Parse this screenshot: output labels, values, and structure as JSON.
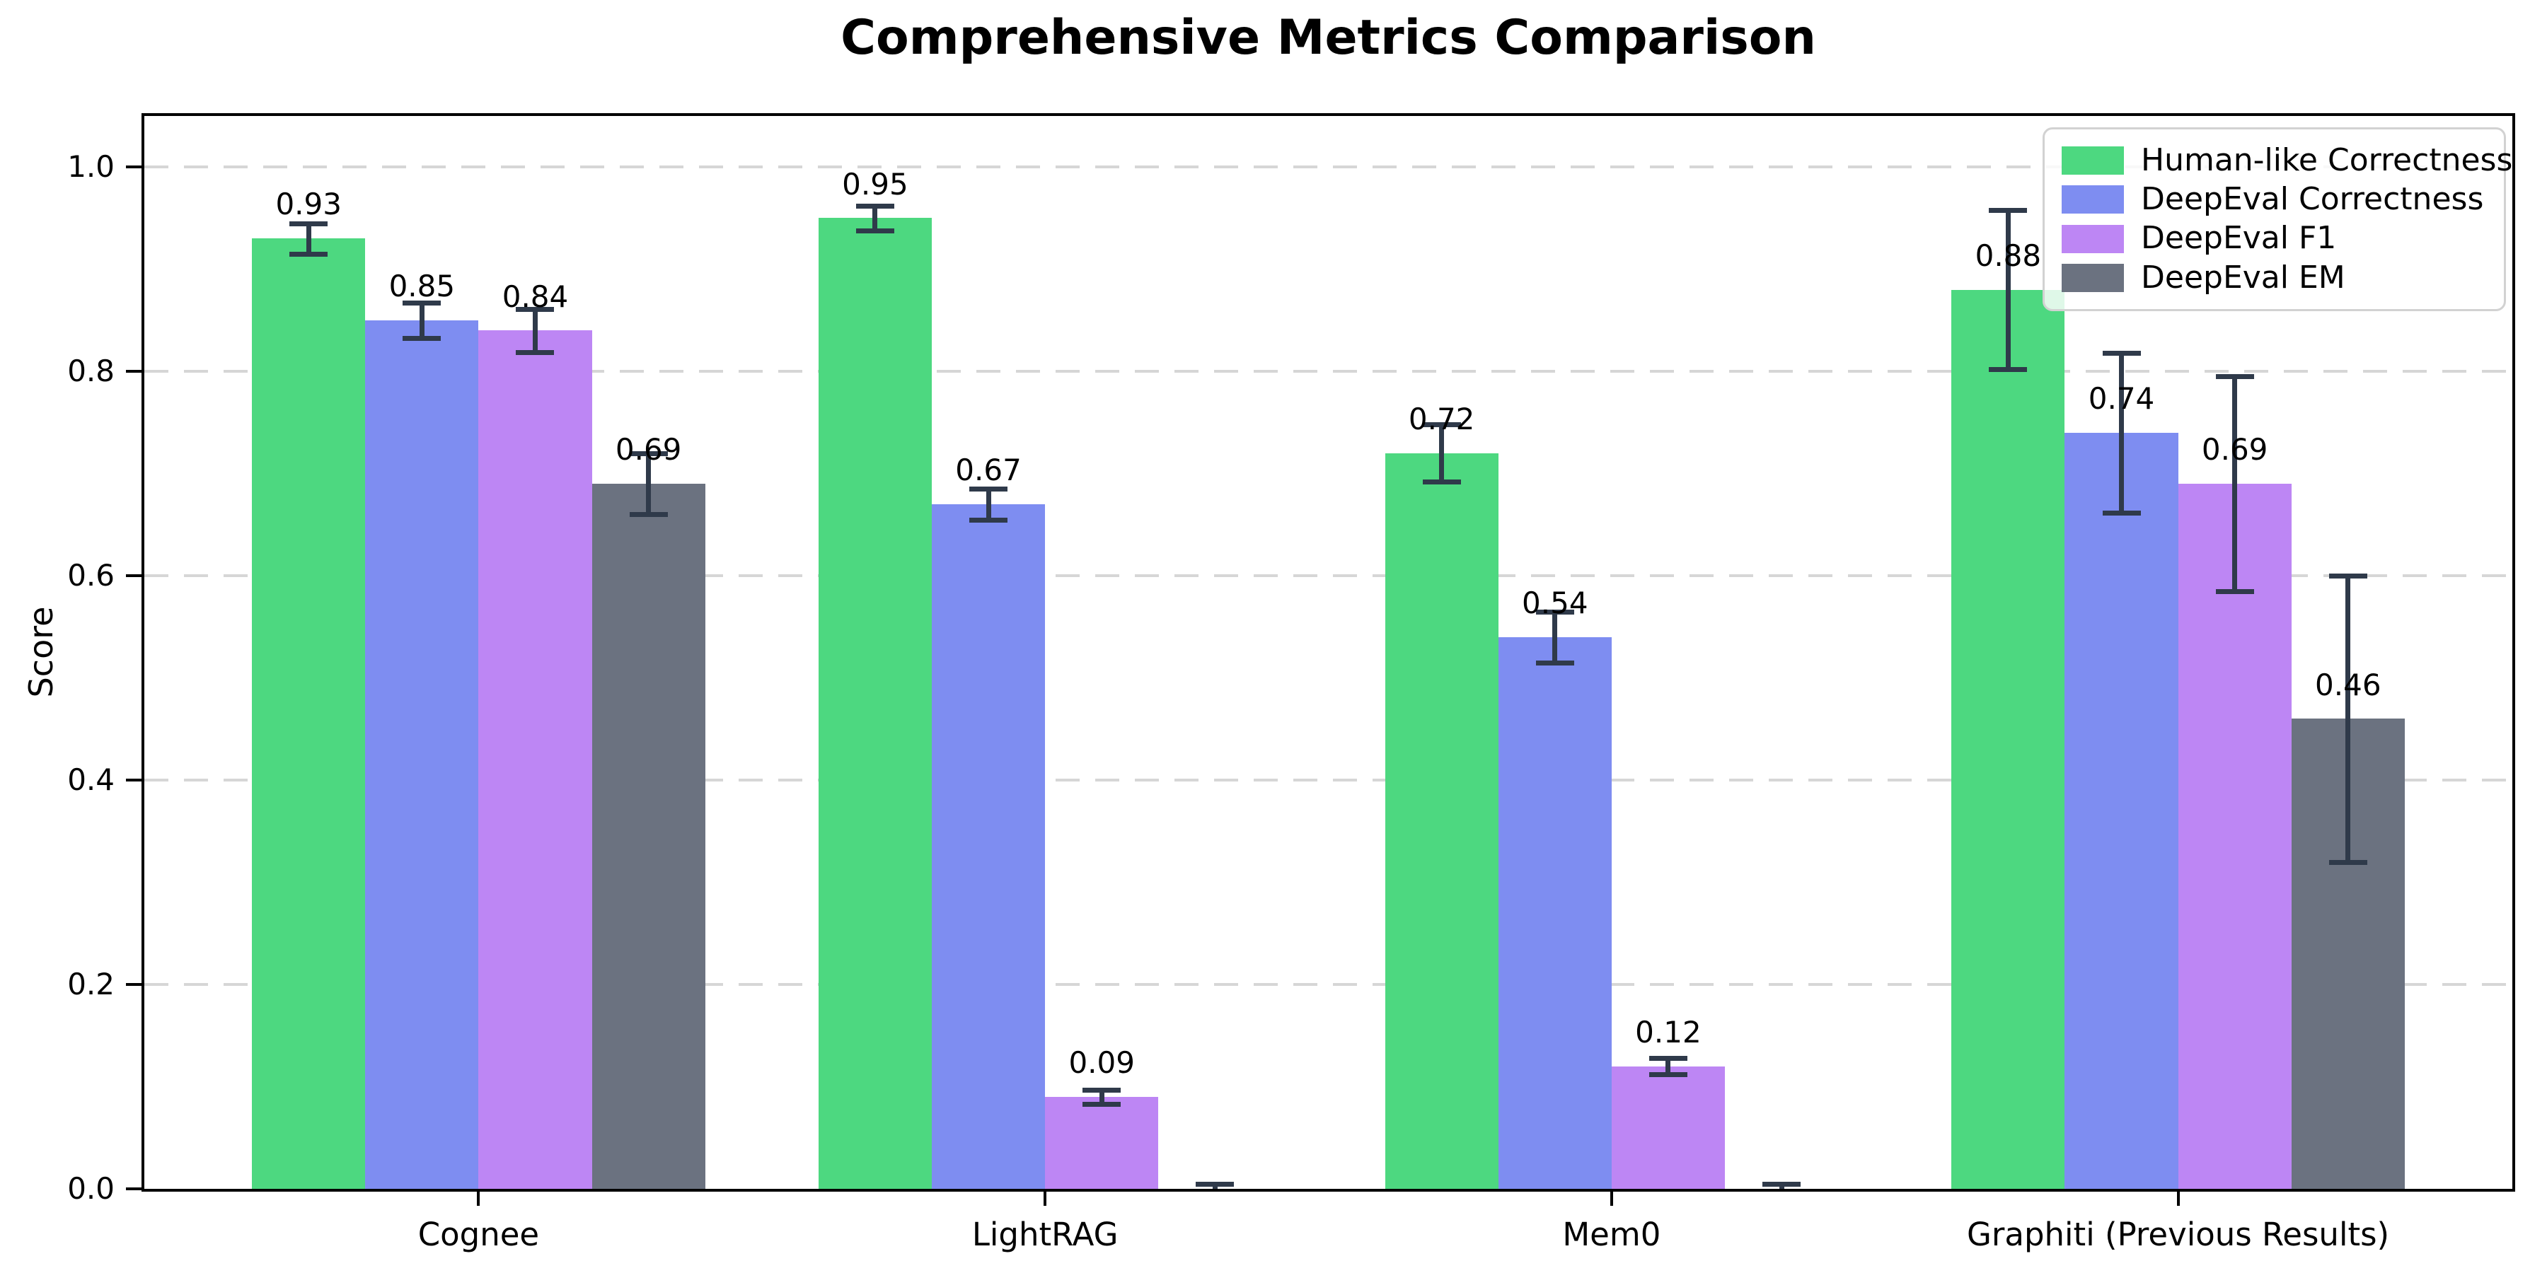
{
  "title": "Comprehensive Metrics Comparison",
  "ylabel": "Score",
  "chart_data": {
    "type": "bar",
    "title": "Comprehensive Metrics Comparison",
    "xlabel": "",
    "ylabel": "Score",
    "categories": [
      "Cognee",
      "LightRAG",
      "Mem0",
      "Graphiti (Previous Results)"
    ],
    "series": [
      {
        "name": "Human-like Correctness",
        "color": "#4dd880",
        "values": [
          0.93,
          0.95,
          0.72,
          0.88
        ],
        "errors": [
          0.015,
          0.012,
          0.028,
          0.078
        ],
        "labels": [
          "0.93",
          "0.95",
          "0.72",
          "0.88"
        ]
      },
      {
        "name": "DeepEval Correctness",
        "color": "#7e8df1",
        "values": [
          0.85,
          0.67,
          0.54,
          0.74
        ],
        "errors": [
          0.017,
          0.015,
          0.025,
          0.078
        ],
        "labels": [
          "0.85",
          "0.67",
          "0.54",
          "0.74"
        ]
      },
      {
        "name": "DeepEval F1",
        "color": "#bd86f4",
        "values": [
          0.84,
          0.09,
          0.12,
          0.69
        ],
        "errors": [
          0.021,
          0.007,
          0.008,
          0.105
        ],
        "labels": [
          "0.84",
          "0.09",
          "0.12",
          "0.69"
        ]
      },
      {
        "name": "DeepEval EM",
        "color": "#6b7280",
        "values": [
          0.69,
          0.0,
          0.0,
          0.46
        ],
        "errors": [
          0.03,
          0.005,
          0.005,
          0.14
        ],
        "labels": [
          "0.69",
          "",
          "",
          "0.46"
        ]
      }
    ],
    "ylim": [
      0,
      1.05
    ],
    "yticks": [
      {
        "value": 0.0,
        "label": "0.0"
      },
      {
        "value": 0.2,
        "label": "0.2"
      },
      {
        "value": 0.4,
        "label": "0.4"
      },
      {
        "value": 0.6,
        "label": "0.6"
      },
      {
        "value": 0.8,
        "label": "0.8"
      },
      {
        "value": 1.0,
        "label": "1.0"
      }
    ],
    "grid": "horizontal-dashed",
    "grid_color": "#d6d6d6",
    "legend_position": "upper-right",
    "error_bar_color": "#2f3a4a",
    "background_color": "#ffffff"
  }
}
